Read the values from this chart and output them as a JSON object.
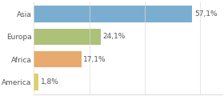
{
  "categories": [
    "Asia",
    "Europa",
    "Africa",
    "America"
  ],
  "values": [
    57.1,
    24.1,
    17.1,
    1.8
  ],
  "labels": [
    "57,1%",
    "24,1%",
    "17,1%",
    "1,8%"
  ],
  "bar_colors": [
    "#7aaed0",
    "#adc178",
    "#e8aa6e",
    "#ddd06a"
  ],
  "background_color": "#ffffff",
  "xlim": [
    0,
    68
  ],
  "label_fontsize": 6.5,
  "tick_fontsize": 6.5,
  "bar_height": 0.72,
  "grid_color": "#dddddd",
  "text_color": "#555555"
}
